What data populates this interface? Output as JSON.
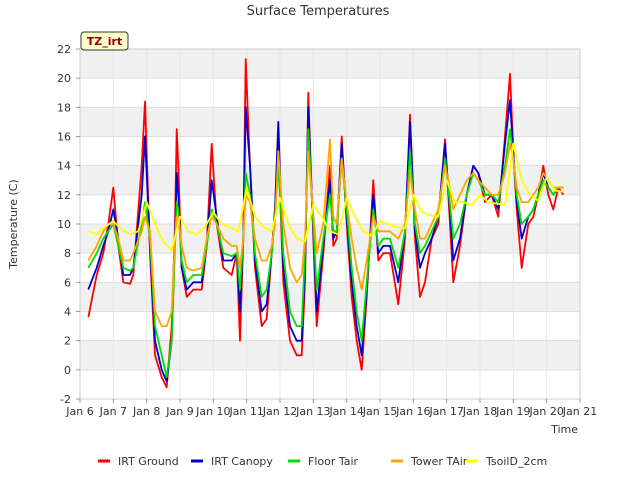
{
  "chart_data": {
    "type": "line",
    "title": "Surface Temperatures",
    "site_tag": "TZ_irt",
    "xlabel": "Time",
    "ylabel": "Temperature (C)",
    "xlim": [
      6,
      21
    ],
    "ylim": [
      -2,
      22
    ],
    "x_ticks": [
      6,
      7,
      8,
      9,
      10,
      11,
      12,
      13,
      14,
      15,
      16,
      17,
      18,
      19,
      20,
      21
    ],
    "x_tick_labels": [
      "Jan 6",
      "Jan 7",
      "Jan 8",
      "Jan 9",
      "Jan 10",
      "Jan 11",
      "Jan 12",
      "Jan 13",
      "Jan 14",
      "Jan 15",
      "Jan 16",
      "Jan 17",
      "Jan 18",
      "Jan 19",
      "Jan 20",
      "Jan 21"
    ],
    "y_ticks": [
      -2,
      0,
      2,
      4,
      6,
      8,
      10,
      12,
      14,
      16,
      18,
      20,
      22
    ],
    "y_tick_labels": [
      "-2",
      "0",
      "2",
      "4",
      "6",
      "8",
      "10",
      "12",
      "14",
      "16",
      "18",
      "20",
      "22"
    ],
    "grid": true,
    "legend_position": "bottom",
    "series": [
      {
        "name": "IRT Ground",
        "color": "#ff0000",
        "x": [
          6.25,
          6.5,
          6.7,
          6.85,
          7.0,
          7.15,
          7.3,
          7.5,
          7.6,
          7.85,
          7.95,
          8.1,
          8.25,
          8.45,
          8.6,
          8.75,
          8.85,
          8.9,
          8.95,
          9.05,
          9.2,
          9.4,
          9.65,
          9.8,
          9.95,
          10.1,
          10.3,
          10.55,
          10.7,
          10.8,
          10.9,
          10.97,
          11.1,
          11.25,
          11.45,
          11.6,
          11.75,
          11.85,
          11.95,
          12.1,
          12.3,
          12.5,
          12.65,
          12.75,
          12.85,
          12.95,
          13.1,
          13.3,
          13.5,
          13.6,
          13.7,
          13.85,
          14.0,
          14.15,
          14.3,
          14.45,
          14.6,
          14.8,
          14.95,
          15.1,
          15.3,
          15.55,
          15.75,
          15.9,
          16.05,
          16.2,
          16.35,
          16.55,
          16.75,
          16.95,
          17.05,
          17.2,
          17.4,
          17.6,
          17.8,
          17.95,
          18.15,
          18.35,
          18.55,
          18.75,
          18.9,
          19.0,
          19.1,
          19.25,
          19.45,
          19.6,
          19.75,
          19.9,
          20.05,
          20.2,
          20.35,
          20.5
        ],
        "y": [
          3.6,
          6.5,
          8.0,
          10.0,
          12.5,
          8.5,
          6.0,
          5.9,
          6.5,
          14.0,
          18.4,
          8.0,
          1.0,
          -0.5,
          -1.2,
          3.0,
          10.0,
          16.5,
          14.0,
          7.0,
          5.0,
          5.5,
          5.5,
          8.5,
          15.5,
          10.0,
          7.0,
          6.5,
          8.0,
          2.0,
          9.0,
          21.3,
          14.0,
          7.0,
          3.0,
          3.5,
          8.0,
          11.0,
          15.5,
          6.0,
          2.0,
          1.0,
          1.0,
          6.0,
          19.0,
          12.0,
          3.0,
          8.0,
          14.0,
          8.5,
          9.0,
          16.0,
          10.0,
          5.0,
          2.0,
          0.0,
          5.0,
          13.0,
          7.5,
          8.0,
          8.0,
          4.5,
          9.0,
          17.5,
          9.0,
          5.0,
          6.0,
          9.0,
          10.0,
          15.8,
          12.0,
          6.0,
          8.5,
          12.0,
          14.0,
          13.5,
          11.5,
          12.0,
          10.5,
          16.0,
          20.3,
          15.0,
          11.0,
          7.0,
          10.0,
          10.5,
          12.0,
          14.0,
          12.0,
          11.0,
          12.5,
          12.0
        ]
      },
      {
        "name": "IRT Canopy",
        "color": "#0000cc",
        "x": [
          6.25,
          6.5,
          6.7,
          6.85,
          7.0,
          7.15,
          7.3,
          7.5,
          7.6,
          7.85,
          7.95,
          8.1,
          8.25,
          8.45,
          8.6,
          8.75,
          8.85,
          8.9,
          8.95,
          9.05,
          9.2,
          9.4,
          9.65,
          9.8,
          9.95,
          10.1,
          10.3,
          10.55,
          10.7,
          10.8,
          10.9,
          10.97,
          11.1,
          11.25,
          11.45,
          11.6,
          11.75,
          11.85,
          11.95,
          12.1,
          12.3,
          12.5,
          12.65,
          12.75,
          12.85,
          12.95,
          13.1,
          13.3,
          13.5,
          13.6,
          13.7,
          13.85,
          14.0,
          14.15,
          14.3,
          14.45,
          14.6,
          14.8,
          14.95,
          15.1,
          15.3,
          15.55,
          15.75,
          15.9,
          16.05,
          16.2,
          16.35,
          16.55,
          16.75,
          16.95,
          17.05,
          17.2,
          17.4,
          17.6,
          17.8,
          17.95,
          18.15,
          18.35,
          18.55,
          18.75,
          18.9,
          19.0,
          19.1,
          19.25,
          19.45,
          19.6,
          19.75,
          19.9,
          20.05,
          20.2,
          20.35,
          20.5
        ],
        "y": [
          5.5,
          7.0,
          8.5,
          9.5,
          11.0,
          9.0,
          6.5,
          6.5,
          7.0,
          12.0,
          16.0,
          8.5,
          2.0,
          0.0,
          -0.8,
          2.0,
          9.0,
          13.5,
          12.0,
          7.0,
          5.5,
          6.0,
          6.0,
          8.5,
          13.0,
          10.5,
          7.5,
          7.5,
          8.0,
          4.0,
          9.0,
          18.0,
          14.0,
          7.5,
          4.0,
          4.5,
          8.0,
          11.0,
          17.0,
          7.0,
          3.0,
          2.0,
          2.0,
          7.0,
          18.0,
          12.0,
          4.0,
          8.5,
          13.0,
          9.0,
          9.5,
          15.5,
          10.5,
          6.0,
          3.0,
          1.0,
          5.5,
          12.0,
          8.0,
          8.5,
          8.5,
          6.0,
          9.5,
          17.0,
          9.5,
          7.0,
          8.0,
          9.0,
          10.5,
          15.5,
          12.5,
          7.5,
          9.0,
          12.0,
          14.0,
          13.5,
          12.0,
          12.0,
          11.0,
          15.5,
          18.5,
          15.0,
          11.5,
          9.0,
          10.5,
          11.0,
          12.0,
          13.5,
          12.5,
          12.0,
          12.5,
          12.5
        ]
      },
      {
        "name": "Floor Tair",
        "color": "#00dd00",
        "x": [
          6.25,
          6.5,
          6.7,
          6.85,
          7.0,
          7.15,
          7.3,
          7.5,
          7.6,
          7.85,
          7.95,
          8.1,
          8.25,
          8.45,
          8.6,
          8.75,
          8.85,
          8.9,
          8.95,
          9.05,
          9.2,
          9.4,
          9.65,
          9.8,
          9.95,
          10.1,
          10.3,
          10.55,
          10.7,
          10.8,
          10.9,
          10.97,
          11.1,
          11.25,
          11.45,
          11.6,
          11.75,
          11.85,
          11.95,
          12.1,
          12.3,
          12.5,
          12.65,
          12.75,
          12.85,
          12.95,
          13.1,
          13.3,
          13.5,
          13.6,
          13.7,
          13.85,
          14.0,
          14.15,
          14.3,
          14.45,
          14.6,
          14.8,
          14.95,
          15.1,
          15.3,
          15.55,
          15.75,
          15.9,
          16.05,
          16.2,
          16.35,
          16.55,
          16.75,
          16.95,
          17.05,
          17.2,
          17.4,
          17.6,
          17.8,
          17.95,
          18.15,
          18.35,
          18.55,
          18.75,
          18.9,
          19.0,
          19.1,
          19.25,
          19.45,
          19.6,
          19.75,
          19.9,
          20.05,
          20.2,
          20.35,
          20.5
        ],
        "y": [
          7.0,
          8.0,
          9.0,
          9.5,
          10.0,
          8.5,
          7.0,
          6.8,
          7.0,
          10.0,
          11.5,
          9.0,
          3.0,
          1.0,
          -0.5,
          2.0,
          8.5,
          11.5,
          11.0,
          7.5,
          6.0,
          6.5,
          6.5,
          8.5,
          11.0,
          10.0,
          8.0,
          7.8,
          8.0,
          5.5,
          9.0,
          13.5,
          12.0,
          8.0,
          5.0,
          5.5,
          8.0,
          10.5,
          14.0,
          8.0,
          4.0,
          3.0,
          3.0,
          8.0,
          16.5,
          12.0,
          5.5,
          9.0,
          12.0,
          9.5,
          9.5,
          14.5,
          11.0,
          7.0,
          4.0,
          2.0,
          6.0,
          11.0,
          8.5,
          9.0,
          9.0,
          7.0,
          9.5,
          15.0,
          10.0,
          8.0,
          8.5,
          9.5,
          10.5,
          14.5,
          12.5,
          9.0,
          10.0,
          12.0,
          13.5,
          13.0,
          12.0,
          12.0,
          11.5,
          14.0,
          16.5,
          14.5,
          12.0,
          10.0,
          10.5,
          11.0,
          12.0,
          13.0,
          12.5,
          12.0,
          12.5,
          12.5
        ]
      },
      {
        "name": "Tower TAir",
        "color": "#ffa500",
        "x": [
          6.25,
          6.5,
          6.7,
          6.85,
          7.0,
          7.15,
          7.3,
          7.5,
          7.6,
          7.85,
          7.95,
          8.1,
          8.25,
          8.45,
          8.6,
          8.75,
          8.85,
          8.9,
          8.95,
          9.05,
          9.2,
          9.4,
          9.65,
          9.8,
          9.95,
          10.1,
          10.3,
          10.55,
          10.7,
          10.8,
          10.9,
          10.97,
          11.1,
          11.25,
          11.45,
          11.6,
          11.75,
          11.85,
          11.95,
          12.1,
          12.3,
          12.5,
          12.65,
          12.75,
          12.85,
          12.95,
          13.1,
          13.3,
          13.5,
          13.6,
          13.7,
          13.85,
          14.0,
          14.15,
          14.3,
          14.45,
          14.6,
          14.8,
          14.95,
          15.1,
          15.3,
          15.55,
          15.75,
          15.9,
          16.05,
          16.2,
          16.35,
          16.55,
          16.75,
          16.95,
          17.05,
          17.2,
          17.4,
          17.6,
          17.8,
          17.95,
          18.15,
          18.35,
          18.55,
          18.75,
          18.9,
          19.0,
          19.1,
          19.25,
          19.45,
          19.6,
          19.75,
          19.9,
          20.05,
          20.2,
          20.35,
          20.5
        ],
        "y": [
          7.5,
          8.5,
          9.5,
          10.0,
          10.0,
          9.0,
          7.5,
          7.5,
          8.0,
          9.5,
          10.5,
          9.5,
          4.0,
          3.0,
          3.0,
          4.0,
          9.0,
          10.5,
          10.5,
          8.5,
          7.0,
          6.8,
          7.0,
          9.0,
          10.5,
          10.0,
          9.0,
          8.5,
          8.5,
          7.0,
          9.0,
          12.0,
          11.5,
          9.0,
          7.5,
          7.5,
          8.5,
          10.0,
          15.0,
          10.0,
          7.0,
          6.0,
          6.5,
          9.0,
          15.0,
          12.0,
          8.0,
          10.0,
          15.8,
          10.5,
          10.0,
          14.5,
          11.5,
          9.0,
          7.0,
          5.5,
          7.5,
          10.5,
          9.5,
          9.5,
          9.5,
          9.0,
          10.0,
          13.5,
          11.0,
          9.0,
          9.0,
          10.0,
          11.0,
          14.0,
          13.0,
          11.0,
          12.0,
          13.0,
          13.5,
          13.0,
          12.5,
          12.0,
          12.0,
          13.5,
          15.5,
          14.5,
          12.5,
          11.5,
          11.5,
          12.0,
          12.5,
          13.5,
          13.0,
          12.5,
          12.5,
          12.5
        ]
      },
      {
        "name": "TsoilD_2cm",
        "color": "#ffff00",
        "x": [
          6.25,
          6.5,
          6.75,
          7.0,
          7.25,
          7.5,
          7.75,
          8.0,
          8.25,
          8.5,
          8.75,
          9.0,
          9.25,
          9.5,
          9.75,
          10.0,
          10.25,
          10.5,
          10.75,
          11.0,
          11.25,
          11.5,
          11.75,
          12.0,
          12.25,
          12.5,
          12.75,
          13.0,
          13.25,
          13.5,
          13.75,
          14.0,
          14.25,
          14.5,
          14.75,
          15.0,
          15.25,
          15.5,
          15.75,
          16.0,
          16.25,
          16.5,
          16.75,
          17.0,
          17.25,
          17.5,
          17.75,
          18.0,
          18.25,
          18.5,
          18.75,
          19.0,
          19.25,
          19.5,
          19.75,
          20.0,
          20.25,
          20.5
        ],
        "y": [
          9.5,
          9.3,
          9.8,
          10.2,
          9.6,
          9.3,
          9.5,
          11.5,
          10.0,
          8.8,
          8.2,
          10.5,
          9.5,
          9.3,
          9.8,
          10.8,
          10.0,
          9.8,
          9.5,
          12.5,
          10.5,
          9.8,
          9.5,
          11.8,
          10.0,
          9.0,
          8.8,
          11.3,
          10.5,
          9.5,
          9.3,
          11.8,
          10.5,
          9.5,
          9.2,
          10.2,
          10.0,
          9.8,
          9.7,
          12.0,
          10.8,
          10.6,
          10.5,
          13.0,
          11.5,
          11.5,
          11.3,
          12.0,
          11.5,
          11.4,
          11.3,
          15.5,
          13.0,
          12.0,
          11.6,
          13.2,
          12.3,
          12.2
        ]
      }
    ]
  }
}
